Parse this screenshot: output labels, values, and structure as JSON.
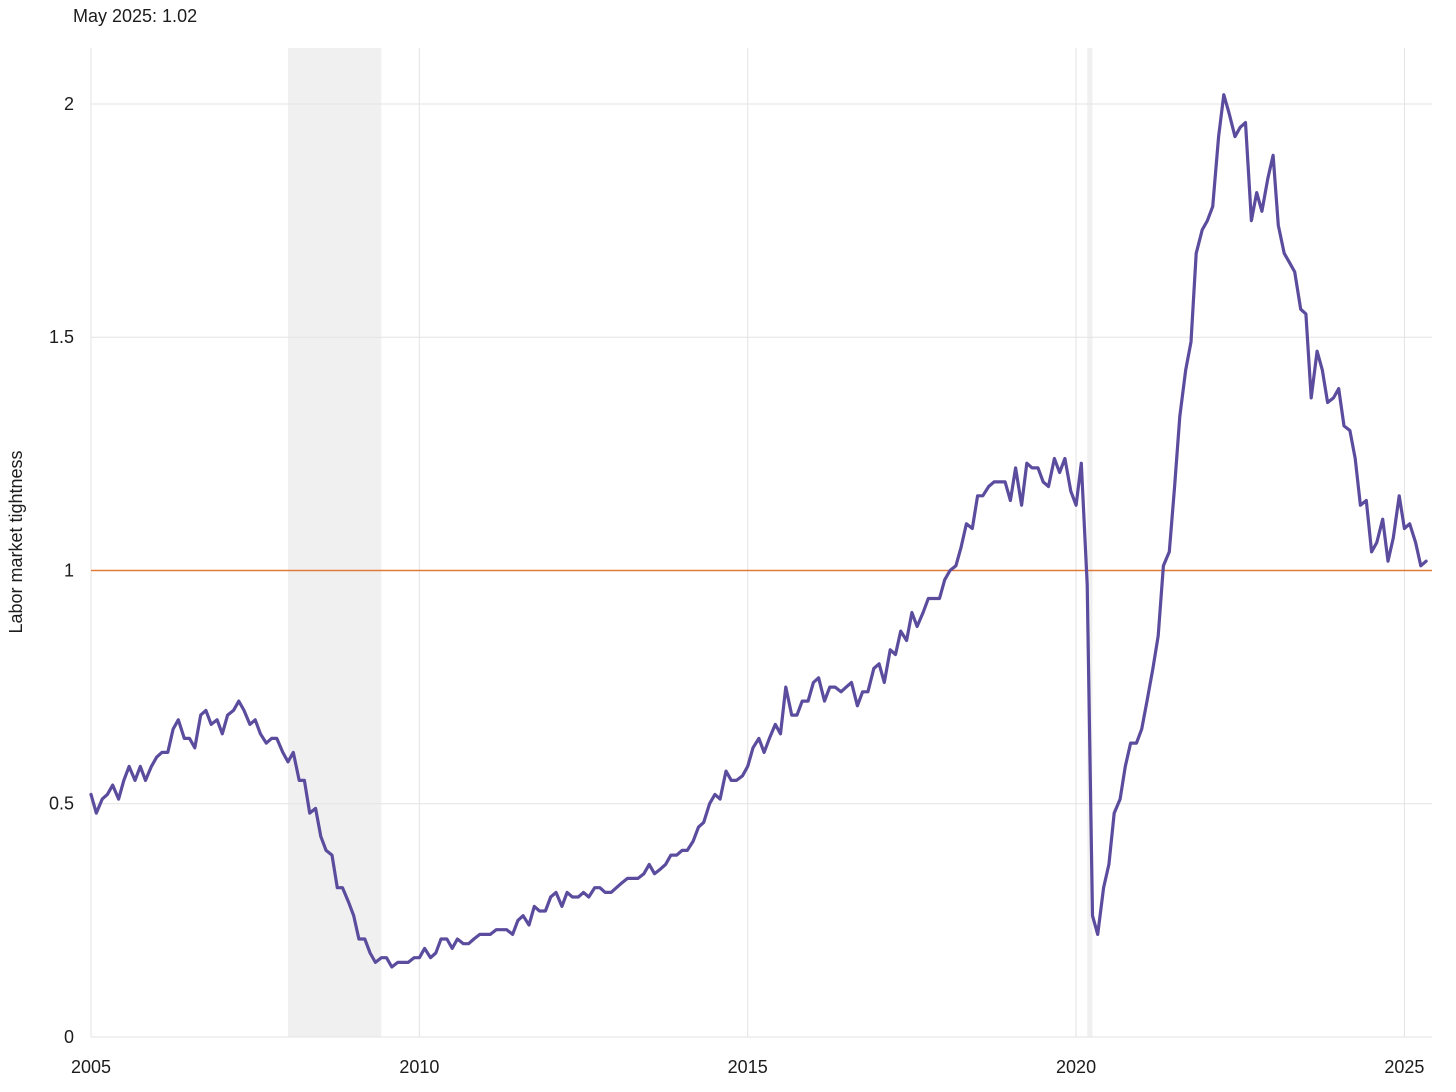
{
  "chart_data": {
    "type": "line",
    "annotation": "May 2025: 1.02",
    "ylabel": "Labor market tightness",
    "xlabel": "",
    "xlim": [
      2005.0,
      2025.42
    ],
    "ylim": [
      0,
      2.12
    ],
    "x_ticks": [
      2005,
      2010,
      2015,
      2020,
      2025
    ],
    "x_tick_labels": [
      "2005",
      "2010",
      "2015",
      "2020",
      "2025"
    ],
    "y_ticks": [
      0,
      0.5,
      1,
      1.5,
      2
    ],
    "y_tick_labels": [
      "0",
      "0.5",
      "1",
      "1.5",
      "2"
    ],
    "grid": true,
    "reference_line": {
      "y": 1,
      "color": "#e07b39"
    },
    "recessions": [
      {
        "start": 2008.0,
        "end": 2009.42
      },
      {
        "start": 2020.17,
        "end": 2020.25
      }
    ],
    "series": [
      {
        "color": "#5b4c9e",
        "points": [
          [
            2005.0,
            0.52
          ],
          [
            2005.08,
            0.48
          ],
          [
            2005.17,
            0.51
          ],
          [
            2005.25,
            0.52
          ],
          [
            2005.33,
            0.54
          ],
          [
            2005.42,
            0.51
          ],
          [
            2005.5,
            0.55
          ],
          [
            2005.58,
            0.58
          ],
          [
            2005.67,
            0.55
          ],
          [
            2005.75,
            0.58
          ],
          [
            2005.83,
            0.55
          ],
          [
            2005.92,
            0.58
          ],
          [
            2006.0,
            0.6
          ],
          [
            2006.08,
            0.61
          ],
          [
            2006.17,
            0.61
          ],
          [
            2006.25,
            0.66
          ],
          [
            2006.33,
            0.68
          ],
          [
            2006.42,
            0.64
          ],
          [
            2006.5,
            0.64
          ],
          [
            2006.58,
            0.62
          ],
          [
            2006.67,
            0.69
          ],
          [
            2006.75,
            0.7
          ],
          [
            2006.83,
            0.67
          ],
          [
            2006.92,
            0.68
          ],
          [
            2007.0,
            0.65
          ],
          [
            2007.08,
            0.69
          ],
          [
            2007.17,
            0.7
          ],
          [
            2007.25,
            0.72
          ],
          [
            2007.33,
            0.7
          ],
          [
            2007.42,
            0.67
          ],
          [
            2007.5,
            0.68
          ],
          [
            2007.58,
            0.65
          ],
          [
            2007.67,
            0.63
          ],
          [
            2007.75,
            0.64
          ],
          [
            2007.83,
            0.64
          ],
          [
            2007.92,
            0.61
          ],
          [
            2008.0,
            0.59
          ],
          [
            2008.08,
            0.61
          ],
          [
            2008.17,
            0.55
          ],
          [
            2008.25,
            0.55
          ],
          [
            2008.33,
            0.48
          ],
          [
            2008.42,
            0.49
          ],
          [
            2008.5,
            0.43
          ],
          [
            2008.58,
            0.4
          ],
          [
            2008.67,
            0.39
          ],
          [
            2008.75,
            0.32
          ],
          [
            2008.83,
            0.32
          ],
          [
            2008.92,
            0.29
          ],
          [
            2009.0,
            0.26
          ],
          [
            2009.08,
            0.21
          ],
          [
            2009.17,
            0.21
          ],
          [
            2009.25,
            0.18
          ],
          [
            2009.33,
            0.16
          ],
          [
            2009.42,
            0.17
          ],
          [
            2009.5,
            0.17
          ],
          [
            2009.58,
            0.15
          ],
          [
            2009.67,
            0.16
          ],
          [
            2009.75,
            0.16
          ],
          [
            2009.83,
            0.16
          ],
          [
            2009.92,
            0.17
          ],
          [
            2010.0,
            0.17
          ],
          [
            2010.08,
            0.19
          ],
          [
            2010.17,
            0.17
          ],
          [
            2010.25,
            0.18
          ],
          [
            2010.33,
            0.21
          ],
          [
            2010.42,
            0.21
          ],
          [
            2010.5,
            0.19
          ],
          [
            2010.58,
            0.21
          ],
          [
            2010.67,
            0.2
          ],
          [
            2010.75,
            0.2
          ],
          [
            2010.83,
            0.21
          ],
          [
            2010.92,
            0.22
          ],
          [
            2011.0,
            0.22
          ],
          [
            2011.08,
            0.22
          ],
          [
            2011.17,
            0.23
          ],
          [
            2011.25,
            0.23
          ],
          [
            2011.33,
            0.23
          ],
          [
            2011.42,
            0.22
          ],
          [
            2011.5,
            0.25
          ],
          [
            2011.58,
            0.26
          ],
          [
            2011.67,
            0.24
          ],
          [
            2011.75,
            0.28
          ],
          [
            2011.83,
            0.27
          ],
          [
            2011.92,
            0.27
          ],
          [
            2012.0,
            0.3
          ],
          [
            2012.08,
            0.31
          ],
          [
            2012.17,
            0.28
          ],
          [
            2012.25,
            0.31
          ],
          [
            2012.33,
            0.3
          ],
          [
            2012.42,
            0.3
          ],
          [
            2012.5,
            0.31
          ],
          [
            2012.58,
            0.3
          ],
          [
            2012.67,
            0.32
          ],
          [
            2012.75,
            0.32
          ],
          [
            2012.83,
            0.31
          ],
          [
            2012.92,
            0.31
          ],
          [
            2013.0,
            0.32
          ],
          [
            2013.08,
            0.33
          ],
          [
            2013.17,
            0.34
          ],
          [
            2013.25,
            0.34
          ],
          [
            2013.33,
            0.34
          ],
          [
            2013.42,
            0.35
          ],
          [
            2013.5,
            0.37
          ],
          [
            2013.58,
            0.35
          ],
          [
            2013.67,
            0.36
          ],
          [
            2013.75,
            0.37
          ],
          [
            2013.83,
            0.39
          ],
          [
            2013.92,
            0.39
          ],
          [
            2014.0,
            0.4
          ],
          [
            2014.08,
            0.4
          ],
          [
            2014.17,
            0.42
          ],
          [
            2014.25,
            0.45
          ],
          [
            2014.33,
            0.46
          ],
          [
            2014.42,
            0.5
          ],
          [
            2014.5,
            0.52
          ],
          [
            2014.58,
            0.51
          ],
          [
            2014.67,
            0.57
          ],
          [
            2014.75,
            0.55
          ],
          [
            2014.83,
            0.55
          ],
          [
            2014.92,
            0.56
          ],
          [
            2015.0,
            0.58
          ],
          [
            2015.08,
            0.62
          ],
          [
            2015.17,
            0.64
          ],
          [
            2015.25,
            0.61
          ],
          [
            2015.33,
            0.64
          ],
          [
            2015.42,
            0.67
          ],
          [
            2015.5,
            0.65
          ],
          [
            2015.58,
            0.75
          ],
          [
            2015.67,
            0.69
          ],
          [
            2015.75,
            0.69
          ],
          [
            2015.83,
            0.72
          ],
          [
            2015.92,
            0.72
          ],
          [
            2016.0,
            0.76
          ],
          [
            2016.08,
            0.77
          ],
          [
            2016.17,
            0.72
          ],
          [
            2016.25,
            0.75
          ],
          [
            2016.33,
            0.75
          ],
          [
            2016.42,
            0.74
          ],
          [
            2016.5,
            0.75
          ],
          [
            2016.58,
            0.76
          ],
          [
            2016.67,
            0.71
          ],
          [
            2016.75,
            0.74
          ],
          [
            2016.83,
            0.74
          ],
          [
            2016.92,
            0.79
          ],
          [
            2017.0,
            0.8
          ],
          [
            2017.08,
            0.76
          ],
          [
            2017.17,
            0.83
          ],
          [
            2017.25,
            0.82
          ],
          [
            2017.33,
            0.87
          ],
          [
            2017.42,
            0.85
          ],
          [
            2017.5,
            0.91
          ],
          [
            2017.58,
            0.88
          ],
          [
            2017.67,
            0.91
          ],
          [
            2017.75,
            0.94
          ],
          [
            2017.83,
            0.94
          ],
          [
            2017.92,
            0.94
          ],
          [
            2018.0,
            0.98
          ],
          [
            2018.08,
            1.0
          ],
          [
            2018.17,
            1.01
          ],
          [
            2018.25,
            1.05
          ],
          [
            2018.33,
            1.1
          ],
          [
            2018.42,
            1.09
          ],
          [
            2018.5,
            1.16
          ],
          [
            2018.58,
            1.16
          ],
          [
            2018.67,
            1.18
          ],
          [
            2018.75,
            1.19
          ],
          [
            2018.83,
            1.19
          ],
          [
            2018.92,
            1.19
          ],
          [
            2019.0,
            1.15
          ],
          [
            2019.08,
            1.22
          ],
          [
            2019.17,
            1.14
          ],
          [
            2019.25,
            1.23
          ],
          [
            2019.33,
            1.22
          ],
          [
            2019.42,
            1.22
          ],
          [
            2019.5,
            1.19
          ],
          [
            2019.58,
            1.18
          ],
          [
            2019.67,
            1.24
          ],
          [
            2019.75,
            1.21
          ],
          [
            2019.83,
            1.24
          ],
          [
            2019.92,
            1.17
          ],
          [
            2020.0,
            1.14
          ],
          [
            2020.08,
            1.23
          ],
          [
            2020.17,
            0.97
          ],
          [
            2020.25,
            0.26
          ],
          [
            2020.33,
            0.22
          ],
          [
            2020.42,
            0.32
          ],
          [
            2020.5,
            0.37
          ],
          [
            2020.58,
            0.48
          ],
          [
            2020.67,
            0.51
          ],
          [
            2020.75,
            0.58
          ],
          [
            2020.83,
            0.63
          ],
          [
            2020.92,
            0.63
          ],
          [
            2021.0,
            0.66
          ],
          [
            2021.08,
            0.72
          ],
          [
            2021.17,
            0.79
          ],
          [
            2021.25,
            0.86
          ],
          [
            2021.33,
            1.01
          ],
          [
            2021.42,
            1.04
          ],
          [
            2021.5,
            1.18
          ],
          [
            2021.58,
            1.33
          ],
          [
            2021.67,
            1.43
          ],
          [
            2021.75,
            1.49
          ],
          [
            2021.83,
            1.68
          ],
          [
            2021.92,
            1.73
          ],
          [
            2022.0,
            1.75
          ],
          [
            2022.08,
            1.78
          ],
          [
            2022.17,
            1.93
          ],
          [
            2022.25,
            2.02
          ],
          [
            2022.33,
            1.98
          ],
          [
            2022.42,
            1.93
          ],
          [
            2022.5,
            1.95
          ],
          [
            2022.58,
            1.96
          ],
          [
            2022.67,
            1.75
          ],
          [
            2022.75,
            1.81
          ],
          [
            2022.83,
            1.77
          ],
          [
            2022.92,
            1.84
          ],
          [
            2023.0,
            1.89
          ],
          [
            2023.08,
            1.74
          ],
          [
            2023.17,
            1.68
          ],
          [
            2023.25,
            1.66
          ],
          [
            2023.33,
            1.64
          ],
          [
            2023.42,
            1.56
          ],
          [
            2023.5,
            1.55
          ],
          [
            2023.58,
            1.37
          ],
          [
            2023.67,
            1.47
          ],
          [
            2023.75,
            1.43
          ],
          [
            2023.83,
            1.36
          ],
          [
            2023.92,
            1.37
          ],
          [
            2024.0,
            1.39
          ],
          [
            2024.08,
            1.31
          ],
          [
            2024.17,
            1.3
          ],
          [
            2024.25,
            1.24
          ],
          [
            2024.33,
            1.14
          ],
          [
            2024.42,
            1.15
          ],
          [
            2024.5,
            1.04
          ],
          [
            2024.58,
            1.06
          ],
          [
            2024.67,
            1.11
          ],
          [
            2024.75,
            1.02
          ],
          [
            2024.83,
            1.07
          ],
          [
            2024.92,
            1.16
          ],
          [
            2025.0,
            1.09
          ],
          [
            2025.08,
            1.1
          ],
          [
            2025.17,
            1.06
          ],
          [
            2025.25,
            1.01
          ],
          [
            2025.33,
            1.02
          ]
        ]
      }
    ]
  }
}
